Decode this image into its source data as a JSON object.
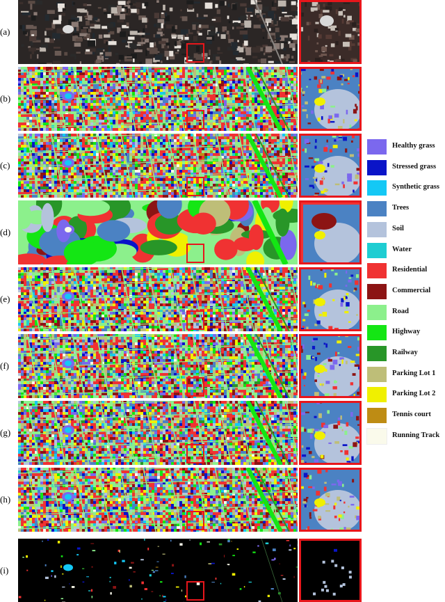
{
  "rows": [
    {
      "label": "(a)",
      "kind": "rgb"
    },
    {
      "label": "(b)",
      "kind": "class"
    },
    {
      "label": "(c)",
      "kind": "class"
    },
    {
      "label": "(d)",
      "kind": "blob"
    },
    {
      "label": "(e)",
      "kind": "class"
    },
    {
      "label": "(f)",
      "kind": "class"
    },
    {
      "label": "(g)",
      "kind": "class"
    },
    {
      "label": "(h)",
      "kind": "class"
    },
    {
      "label": "(i)",
      "kind": "gt"
    }
  ],
  "legend": [
    {
      "label": "Healthy grass",
      "color": "#7b68ee"
    },
    {
      "label": "Stressed grass",
      "color": "#0a14c8"
    },
    {
      "label": "Synthetic grass",
      "color": "#14c8f5"
    },
    {
      "label": "Trees",
      "color": "#4b82c3"
    },
    {
      "label": "Soil",
      "color": "#b4c3dc"
    },
    {
      "label": "Water",
      "color": "#1ecdd2"
    },
    {
      "label": "Residential",
      "color": "#f03232"
    },
    {
      "label": "Commercial",
      "color": "#8c1414"
    },
    {
      "label": "Road",
      "color": "#8cf08c"
    },
    {
      "label": "Highway",
      "color": "#14e614"
    },
    {
      "label": "Railway",
      "color": "#289628"
    },
    {
      "label": "Parking Lot 1",
      "color": "#bebe78"
    },
    {
      "label": "Parking Lot 2",
      "color": "#f0f000"
    },
    {
      "label": "Tennis court",
      "color": "#be8c14"
    },
    {
      "label": "Running Track",
      "color": "#fafaeb"
    }
  ]
}
